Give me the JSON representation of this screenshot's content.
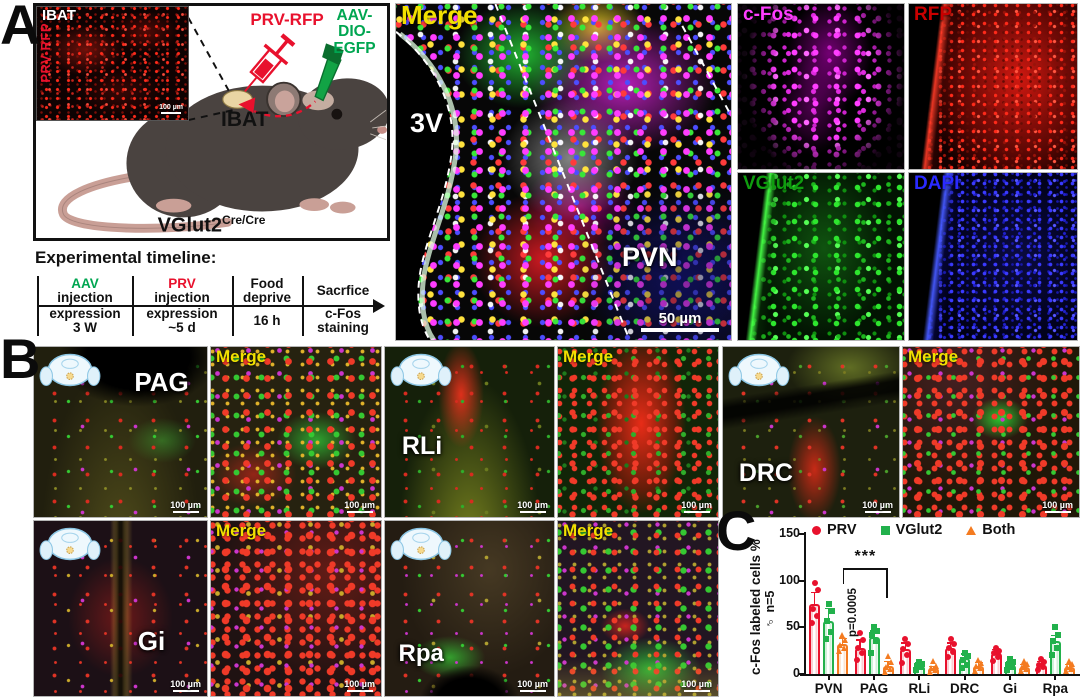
{
  "colors": {
    "prv_red": "#e8112d",
    "aav_green": "#00a651",
    "merge_yellow": "#f2e000",
    "cfos_magenta": "#ff3dff",
    "rfp_red": "#c80000",
    "vglut_green": "#0f9d0f",
    "dapi_blue": "#2a2aff",
    "chart_red": "#e8112d",
    "chart_green": "#22b14c",
    "chart_orange": "#f47b20"
  },
  "panel_a": {
    "letter": "A",
    "inset": {
      "title": "IBAT",
      "side_label": "PRV-RFP",
      "scale": "100 µm"
    },
    "prv_injection_label": "PRV-RFP",
    "aav_line1": "AAV-",
    "aav_line2": "DIO-EGFP",
    "ibat_label": "IBAT",
    "genotype": "VGlut2",
    "genotype_sup": "Cre/Cre",
    "timeline": {
      "title": "Experimental timeline:",
      "steps": [
        {
          "t1": "AAV",
          "t2": "injection",
          "b1": "expression",
          "b2": "3 W"
        },
        {
          "t1": "PRV",
          "t2": "injection",
          "b1": "expression",
          "b2": "~5 d"
        },
        {
          "t1": "Food",
          "t2": "deprive",
          "b1": "16 h",
          "b2": ""
        },
        {
          "t1": "Sacrfice",
          "t2": "",
          "b1": "c-Fos",
          "b2": "staining"
        }
      ]
    },
    "merge": {
      "label": "Merge",
      "ventricle": "3V",
      "region": "PVN",
      "scale": "50 µm"
    },
    "channels": [
      {
        "label": "c-Fos"
      },
      {
        "label": "RFP"
      },
      {
        "label": "VGlut2"
      },
      {
        "label": "DAPI"
      }
    ]
  },
  "panel_b": {
    "letter": "B",
    "regions": [
      {
        "name": "PAG",
        "scale": "100 µm",
        "merge_label": "Merge",
        "merge_scale": "100 µm"
      },
      {
        "name": "RLi",
        "scale": "100 µm",
        "merge_label": "Merge",
        "merge_scale": "100 µm"
      },
      {
        "name": "DRC",
        "scale": "100 µm",
        "merge_label": "Merge",
        "merge_scale": "100 µm"
      },
      {
        "name": "Gi",
        "scale": "100 µm",
        "merge_label": "Merge",
        "merge_scale": "100 µm"
      },
      {
        "name": "Rpa",
        "scale": "100 µm",
        "merge_label": "Merge",
        "merge_scale": "100 µm"
      }
    ]
  },
  "panel_c": {
    "letter": "C"
  },
  "chart_data": {
    "type": "bar",
    "title": "",
    "ylabel": "c-Fos labeled cells %",
    "ylabel2": "♂ n=5",
    "ylim": [
      0,
      150
    ],
    "yticks": [
      0,
      50,
      100,
      150
    ],
    "grid": false,
    "legend_position": "top",
    "categories": [
      "PVN",
      "PAG",
      "RLi",
      "DRC",
      "Gi",
      "Rpa"
    ],
    "series": [
      {
        "name": "PRV",
        "marker": "circle",
        "color": "#e8112d",
        "values": [
          75,
          28,
          27,
          28,
          22,
          10
        ],
        "errors": [
          12,
          8,
          6,
          5,
          4,
          3
        ],
        "points": [
          [
            55,
            62,
            70,
            90,
            97
          ],
          [
            15,
            22,
            28,
            36,
            44
          ],
          [
            12,
            20,
            27,
            32,
            37
          ],
          [
            18,
            24,
            28,
            32,
            37
          ],
          [
            14,
            18,
            22,
            25,
            28
          ],
          [
            4,
            7,
            10,
            13,
            16
          ]
        ]
      },
      {
        "name": "VGlut2",
        "marker": "square",
        "color": "#22b14c",
        "values": [
          57,
          40,
          9,
          17,
          10,
          35
        ],
        "errors": [
          13,
          6,
          3,
          4,
          3,
          6
        ],
        "points": [
          [
            38,
            45,
            57,
            68,
            75
          ],
          [
            22,
            35,
            42,
            46,
            50
          ],
          [
            4,
            7,
            9,
            11,
            13
          ],
          [
            6,
            10,
            15,
            19,
            23
          ],
          [
            4,
            7,
            10,
            13,
            16
          ],
          [
            20,
            28,
            35,
            42,
            50
          ]
        ]
      },
      {
        "name": "Both",
        "marker": "triangle",
        "color": "#f47b20",
        "values": [
          32,
          9,
          6,
          9,
          8,
          8
        ],
        "errors": [
          6,
          4,
          2,
          3,
          2,
          2
        ],
        "points": [
          [
            25,
            28,
            31,
            36,
            42
          ],
          [
            2,
            5,
            8,
            13,
            19
          ],
          [
            2,
            4,
            6,
            9,
            14
          ],
          [
            3,
            6,
            9,
            12,
            15
          ],
          [
            3,
            5,
            8,
            11,
            14
          ],
          [
            3,
            5,
            8,
            11,
            14
          ]
        ]
      }
    ],
    "significance": {
      "stars": "***",
      "p_label": "p=0.0005",
      "from": "PVN",
      "to": "PAG",
      "series": "Both"
    }
  }
}
